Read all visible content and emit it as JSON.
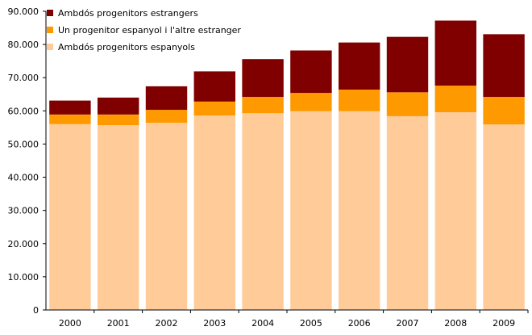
{
  "chart_data": {
    "type": "bar",
    "stacked": true,
    "title": "",
    "xlabel": "",
    "ylabel": "",
    "categories": [
      "2000",
      "2001",
      "2002",
      "2003",
      "2004",
      "2005",
      "2006",
      "2007",
      "2008",
      "2009"
    ],
    "ylim": [
      0,
      90000
    ],
    "yticks": [
      0,
      10000,
      20000,
      30000,
      40000,
      50000,
      60000,
      70000,
      80000,
      90000
    ],
    "ytick_labels": [
      "0",
      "10.000",
      "20.000",
      "30.000",
      "40.000",
      "50.000",
      "60.000",
      "70.000",
      "80.000",
      "90.000"
    ],
    "grid": false,
    "legend_position": "top-left",
    "series": [
      {
        "name": "Ambdós progenitors espanyols",
        "color": "#FFCC99",
        "values": [
          56000,
          55700,
          56400,
          58600,
          59300,
          59900,
          59900,
          58400,
          59600,
          55900
        ]
      },
      {
        "name": "Un progenitor espanyol i l'altre estranger",
        "color": "#FF9900",
        "values": [
          2900,
          3200,
          3900,
          4200,
          4900,
          5500,
          6500,
          7200,
          8000,
          8300
        ]
      },
      {
        "name": "Ambdós progenitors estrangers",
        "color": "#800000",
        "values": [
          4200,
          5100,
          7100,
          9100,
          11400,
          12800,
          14200,
          16700,
          19600,
          18900
        ]
      }
    ],
    "legend_order": [
      2,
      1,
      0
    ]
  }
}
